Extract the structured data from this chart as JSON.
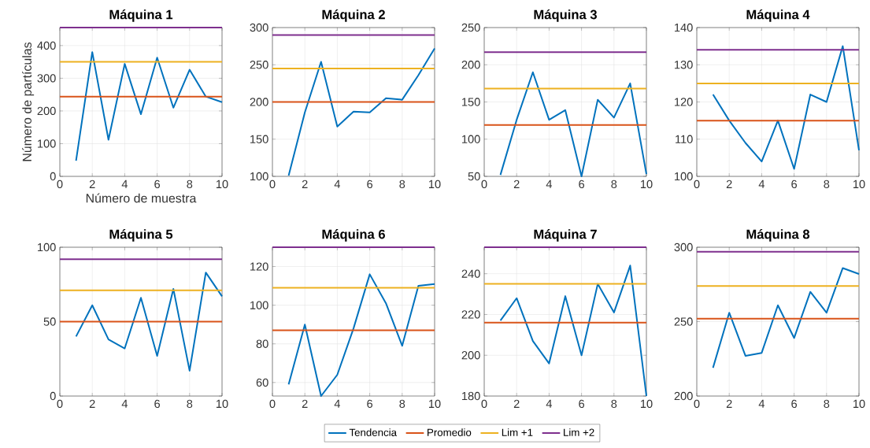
{
  "chart_data": [
    {
      "type": "line",
      "title": "Máquina 1",
      "xlabel": "Número de muestra",
      "ylabel": "Número de partículas",
      "x": [
        1,
        2,
        3,
        4,
        5,
        6,
        7,
        8,
        9,
        10
      ],
      "xlim": [
        0,
        10
      ],
      "xticks": [
        0,
        2,
        4,
        6,
        8,
        10
      ],
      "ylim": [
        0,
        455
      ],
      "yticks": [
        0,
        100,
        200,
        300,
        400
      ],
      "grid": true,
      "legend": "bottom",
      "series": [
        {
          "name": "Tendencia",
          "color": "#0072bd",
          "values": [
            48,
            380,
            112,
            344,
            190,
            363,
            210,
            326,
            244,
            227
          ]
        }
      ],
      "ref_lines": [
        {
          "axis": "y",
          "value": 244,
          "label": "Promedio",
          "color": "#d95319"
        },
        {
          "axis": "y",
          "value": 350,
          "label": "Lim +1",
          "color": "#edb120"
        },
        {
          "axis": "y",
          "value": 455,
          "label": "Lim +2",
          "color": "#7e2f8e"
        }
      ]
    },
    {
      "type": "line",
      "title": "Máquina 2",
      "x": [
        1,
        2,
        3,
        4,
        5,
        6,
        7,
        8,
        9,
        10
      ],
      "xlim": [
        0,
        10
      ],
      "xticks": [
        0,
        2,
        4,
        6,
        8,
        10
      ],
      "ylim": [
        100,
        300
      ],
      "yticks": [
        100,
        150,
        200,
        250,
        300
      ],
      "grid": true,
      "series": [
        {
          "color": "#0072bd",
          "values": [
            101,
            186,
            254,
            167,
            187,
            186,
            205,
            203,
            236,
            272
          ]
        }
      ],
      "ref_lines": [
        {
          "axis": "y",
          "value": 200,
          "color": "#d95319"
        },
        {
          "axis": "y",
          "value": 245,
          "color": "#edb120"
        },
        {
          "axis": "y",
          "value": 290,
          "color": "#7e2f8e"
        }
      ]
    },
    {
      "type": "line",
      "title": "Máquina 3",
      "x": [
        1,
        2,
        3,
        4,
        5,
        6,
        7,
        8,
        9,
        10
      ],
      "xlim": [
        0,
        10
      ],
      "xticks": [
        0,
        2,
        4,
        6,
        8,
        10
      ],
      "ylim": [
        50,
        250
      ],
      "yticks": [
        50,
        100,
        150,
        200,
        250
      ],
      "grid": true,
      "series": [
        {
          "color": "#0072bd",
          "values": [
            52,
            126,
            190,
            126,
            139,
            50,
            153,
            129,
            175,
            53
          ]
        }
      ],
      "ref_lines": [
        {
          "axis": "y",
          "value": 119,
          "color": "#d95319"
        },
        {
          "axis": "y",
          "value": 168,
          "color": "#edb120"
        },
        {
          "axis": "y",
          "value": 217,
          "color": "#7e2f8e"
        }
      ]
    },
    {
      "type": "line",
      "title": "Máquina 4",
      "x": [
        1,
        2,
        3,
        4,
        5,
        6,
        7,
        8,
        9,
        10
      ],
      "xlim": [
        0,
        10
      ],
      "xticks": [
        0,
        2,
        4,
        6,
        8,
        10
      ],
      "ylim": [
        100,
        140
      ],
      "yticks": [
        100,
        110,
        120,
        130,
        140
      ],
      "grid": true,
      "series": [
        {
          "color": "#0072bd",
          "values": [
            122,
            115,
            109,
            104,
            115,
            102,
            122,
            120,
            135,
            107
          ]
        }
      ],
      "ref_lines": [
        {
          "axis": "y",
          "value": 115,
          "color": "#d95319"
        },
        {
          "axis": "y",
          "value": 125,
          "color": "#edb120"
        },
        {
          "axis": "y",
          "value": 134,
          "color": "#7e2f8e"
        }
      ]
    },
    {
      "type": "line",
      "title": "Máquina 5",
      "x": [
        1,
        2,
        3,
        4,
        5,
        6,
        7,
        8,
        9,
        10
      ],
      "xlim": [
        0,
        10
      ],
      "xticks": [
        0,
        2,
        4,
        6,
        8,
        10
      ],
      "ylim": [
        0,
        100
      ],
      "yticks": [
        0,
        50,
        100
      ],
      "grid": true,
      "series": [
        {
          "color": "#0072bd",
          "values": [
            40,
            61,
            38,
            32,
            66,
            27,
            72,
            17,
            83,
            67
          ]
        }
      ],
      "ref_lines": [
        {
          "axis": "y",
          "value": 50,
          "color": "#d95319"
        },
        {
          "axis": "y",
          "value": 71,
          "color": "#edb120"
        },
        {
          "axis": "y",
          "value": 92,
          "color": "#7e2f8e"
        }
      ]
    },
    {
      "type": "line",
      "title": "Máquina 6",
      "x": [
        1,
        2,
        3,
        4,
        5,
        6,
        7,
        8,
        9,
        10
      ],
      "xlim": [
        0,
        10
      ],
      "xticks": [
        0,
        2,
        4,
        6,
        8,
        10
      ],
      "ylim": [
        53,
        130
      ],
      "yticks": [
        60,
        80,
        100,
        120
      ],
      "grid": true,
      "series": [
        {
          "color": "#0072bd",
          "values": [
            59,
            90,
            53,
            64,
            88,
            116,
            101,
            79,
            110,
            111
          ]
        }
      ],
      "ref_lines": [
        {
          "axis": "y",
          "value": 87,
          "color": "#d95319"
        },
        {
          "axis": "y",
          "value": 109,
          "color": "#edb120"
        },
        {
          "axis": "y",
          "value": 130,
          "color": "#7e2f8e"
        }
      ]
    },
    {
      "type": "line",
      "title": "Máquina 7",
      "x": [
        1,
        2,
        3,
        4,
        5,
        6,
        7,
        8,
        9,
        10
      ],
      "xlim": [
        0,
        10
      ],
      "xticks": [
        0,
        2,
        4,
        6,
        8,
        10
      ],
      "ylim": [
        180,
        253
      ],
      "yticks": [
        180,
        200,
        220,
        240
      ],
      "grid": true,
      "series": [
        {
          "color": "#0072bd",
          "values": [
            217,
            228,
            207,
            196,
            229,
            200,
            235,
            221,
            244,
            180
          ]
        }
      ],
      "ref_lines": [
        {
          "axis": "y",
          "value": 216,
          "color": "#d95319"
        },
        {
          "axis": "y",
          "value": 235,
          "color": "#edb120"
        },
        {
          "axis": "y",
          "value": 253,
          "color": "#7e2f8e"
        }
      ]
    },
    {
      "type": "line",
      "title": "Máquina 8",
      "x": [
        1,
        2,
        3,
        4,
        5,
        6,
        7,
        8,
        9,
        10
      ],
      "xlim": [
        0,
        10
      ],
      "xticks": [
        0,
        2,
        4,
        6,
        8,
        10
      ],
      "ylim": [
        200,
        300
      ],
      "yticks": [
        200,
        250,
        300
      ],
      "grid": true,
      "series": [
        {
          "color": "#0072bd",
          "values": [
            219,
            256,
            227,
            229,
            261,
            239,
            270,
            256,
            286,
            282
          ]
        }
      ],
      "ref_lines": [
        {
          "axis": "y",
          "value": 252,
          "color": "#d95319"
        },
        {
          "axis": "y",
          "value": 274,
          "color": "#edb120"
        },
        {
          "axis": "y",
          "value": 297,
          "color": "#7e2f8e"
        }
      ]
    }
  ]
}
